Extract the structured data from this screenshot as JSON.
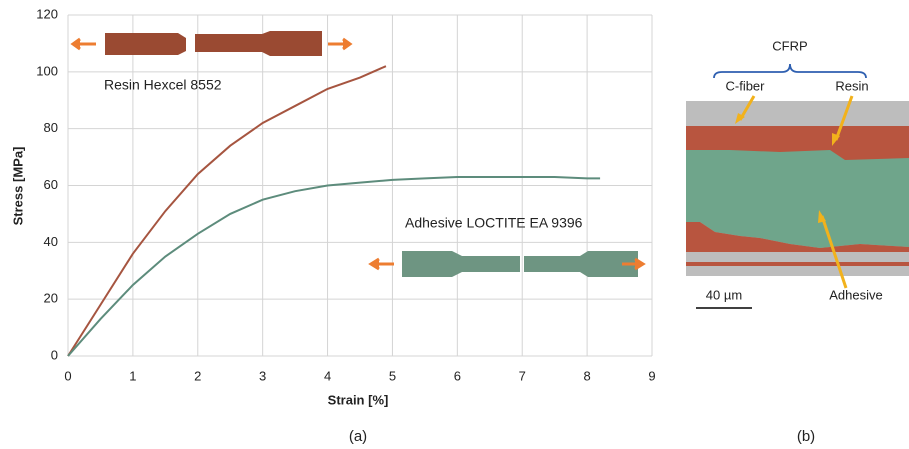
{
  "chart_data": {
    "type": "line",
    "xlabel": "Strain [%]",
    "ylabel": "Stress [MPa]",
    "xlim": [
      0,
      9
    ],
    "ylim": [
      0,
      120
    ],
    "xticks": [
      0,
      1,
      2,
      3,
      4,
      5,
      6,
      7,
      8,
      9
    ],
    "yticks": [
      0,
      20,
      40,
      60,
      80,
      100,
      120
    ],
    "grid": true,
    "series": [
      {
        "name": "Resin Hexcel 8552",
        "color": "#a65540",
        "x": [
          0,
          0.5,
          1,
          1.5,
          2,
          2.5,
          3,
          3.5,
          4,
          4.5,
          4.9
        ],
        "values": [
          0,
          18,
          36,
          51,
          64,
          74,
          82,
          88,
          94,
          98,
          102
        ]
      },
      {
        "name": "Adhesive LOCTITE EA 9396",
        "color": "#5d8c7c",
        "x": [
          0,
          0.5,
          1,
          1.5,
          2,
          2.5,
          3,
          3.5,
          4,
          4.5,
          5,
          5.5,
          6,
          6.5,
          7,
          7.5,
          8,
          8.2
        ],
        "values": [
          0,
          13,
          25,
          35,
          43,
          50,
          55,
          58,
          60,
          61,
          62,
          62.5,
          63,
          63,
          63,
          63,
          62.5,
          62.5
        ]
      }
    ]
  },
  "panel_a": {
    "caption": "(a)"
  },
  "panel_b": {
    "caption": "(b)",
    "group": "CFRP",
    "fiber": "C-fiber",
    "resin": "Resin",
    "adhesive": "Adhesive",
    "scale": "40 µm"
  }
}
